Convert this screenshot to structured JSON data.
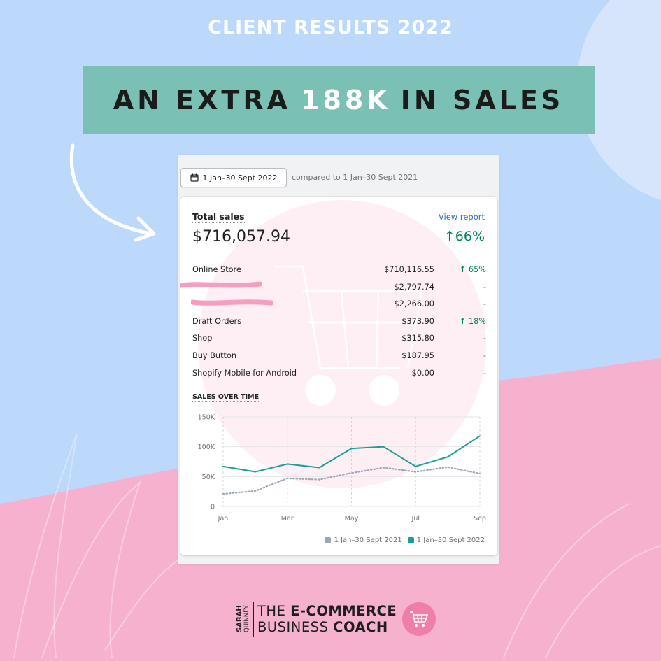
{
  "header": {
    "top_title": "CLIENT RESULTS 2022",
    "banner_before": "AN EXTRA",
    "banner_highlight": "188K",
    "banner_after": "IN SALES"
  },
  "report": {
    "date_range_button": "1 Jan–30 Sept 2022",
    "compared_text": "compared to 1 Jan–30 Sept 2021",
    "total_sales_label": "Total sales",
    "view_report_link": "View report",
    "total_sales_value": "$716,057.94",
    "total_sales_change": "↑66%",
    "channels": [
      {
        "name": "Online Store",
        "amount": "$710,116.55",
        "change": "↑ 65%",
        "trend": "up",
        "redacted": false
      },
      {
        "name": "",
        "amount": "$2,797.74",
        "change": "-",
        "trend": "none",
        "redacted": true
      },
      {
        "name": "",
        "amount": "$2,266.00",
        "change": "-",
        "trend": "none",
        "redacted": true
      },
      {
        "name": "Draft Orders",
        "amount": "$373.90",
        "change": "↑ 18%",
        "trend": "up",
        "redacted": false
      },
      {
        "name": "Shop",
        "amount": "$315.80",
        "change": "-",
        "trend": "none",
        "redacted": false
      },
      {
        "name": "Buy Button",
        "amount": "$187.95",
        "change": "-",
        "trend": "none",
        "redacted": false
      },
      {
        "name": "Shopify Mobile for Android",
        "amount": "$0.00",
        "change": "-",
        "trend": "none",
        "redacted": false
      }
    ],
    "chart_title": "SALES OVER TIME"
  },
  "chart_data": {
    "type": "line",
    "title": "SALES OVER TIME",
    "x": [
      "Jan",
      "",
      "Mar",
      "",
      "May",
      "",
      "Jul",
      "",
      "Sep"
    ],
    "x_tick_labels": [
      "Jan",
      "Mar",
      "May",
      "Jul",
      "Sep"
    ],
    "y_tick_labels": [
      "0",
      "50K",
      "100K",
      "150K"
    ],
    "ylim": [
      0,
      150000
    ],
    "grid": true,
    "legend_position": "bottom-right",
    "series": [
      {
        "name": "1 Jan–30 Sept 2021",
        "color": "#9ca6b4",
        "style": "dotted",
        "values": [
          21000,
          26000,
          47000,
          45000,
          56000,
          65000,
          58000,
          66000,
          55000
        ]
      },
      {
        "name": "1 Jan–30 Sept 2022",
        "color": "#1a9e97",
        "style": "solid",
        "values": [
          67000,
          58000,
          71000,
          65000,
          97000,
          100000,
          67000,
          83000,
          118000
        ]
      }
    ]
  },
  "brand": {
    "side_first": "SARAH",
    "side_last": "QUINNEY",
    "line1_light": "THE ",
    "line1_bold": "E-COMMERCE",
    "line2_light": "BUSINESS ",
    "line2_bold": "COACH"
  },
  "colors": {
    "background_blue": "#bcd8fb",
    "background_pink": "#f6b1ce",
    "banner_teal": "#7bc0b5",
    "accent_green": "#008060",
    "brand_pink": "#ef7fa9"
  }
}
